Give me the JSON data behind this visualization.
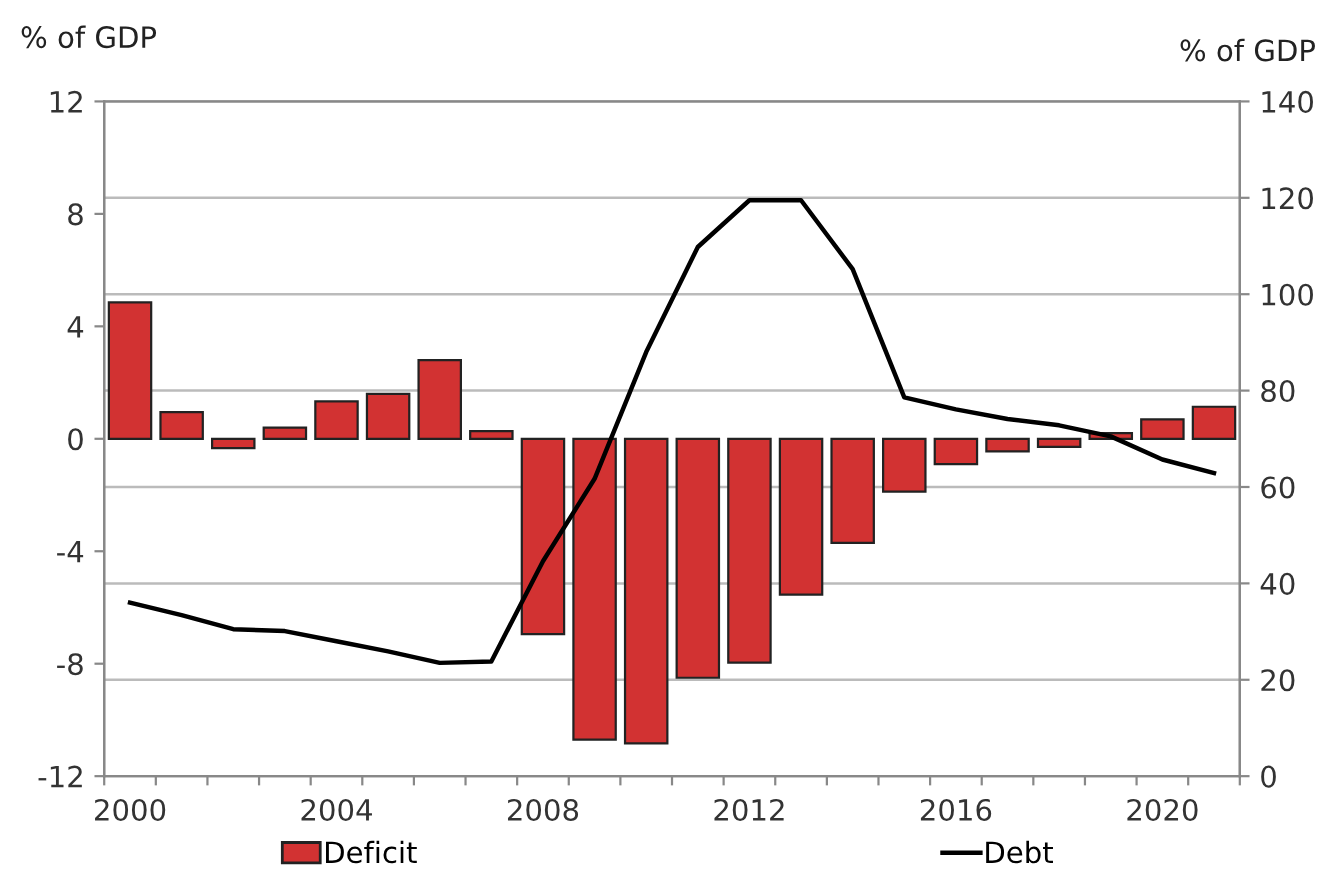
{
  "chart_data": {
    "type": "bar",
    "ylabel": "% of GDP",
    "y2label": "% of GDP",
    "categories": [
      "2000",
      null,
      null,
      null,
      "2004",
      null,
      null,
      null,
      "2008",
      null,
      null,
      null,
      "2012",
      null,
      null,
      null,
      "2016",
      null,
      null,
      null,
      "2020",
      null
    ],
    "series": [
      {
        "name": "Deficit",
        "color": "#d23232",
        "values": [
          4.85,
          0.95,
          -0.33,
          0.4,
          1.33,
          1.6,
          2.8,
          0.27,
          -6.95,
          -10.7,
          -10.83,
          -8.5,
          -7.96,
          -5.54,
          -3.7,
          -1.88,
          -0.9,
          -0.45,
          -0.29,
          0.2,
          0.69,
          1.14
        ]
      },
      {
        "name": "Debt",
        "type": "line",
        "axis": "y2",
        "color": "#000000",
        "values": [
          36,
          33.4,
          30.5,
          30.1,
          28,
          25.9,
          23.5,
          23.8,
          44.6,
          61.7,
          88,
          109.8,
          119.5,
          119.5,
          105.2,
          78.6,
          76.1,
          74.1,
          72.8,
          70.5,
          65.7,
          62.9
        ]
      }
    ],
    "ylim": [
      -12,
      12
    ],
    "yticks": [
      -12,
      -8,
      -4,
      0,
      4,
      8,
      12
    ],
    "y2lim": [
      0,
      140
    ],
    "y2ticks": [
      0,
      20,
      40,
      60,
      80,
      100,
      120,
      140
    ],
    "grid": true,
    "legend": "bottom"
  }
}
